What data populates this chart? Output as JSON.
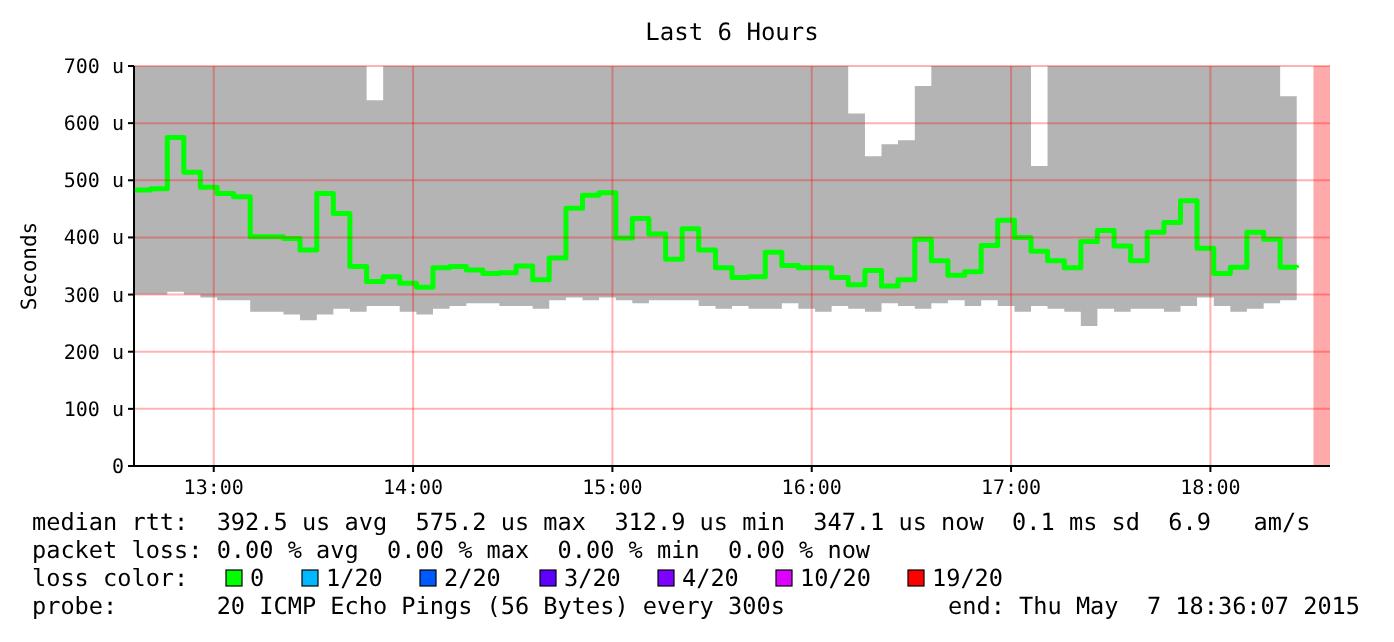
{
  "chart_data": {
    "type": "step",
    "title": "Last 6 Hours",
    "ylabel": "Seconds",
    "x": [
      12.6,
      12.683,
      12.767,
      12.85,
      12.933,
      13.017,
      13.1,
      13.183,
      13.267,
      13.35,
      13.433,
      13.517,
      13.6,
      13.683,
      13.767,
      13.85,
      13.933,
      14.017,
      14.1,
      14.183,
      14.267,
      14.35,
      14.433,
      14.517,
      14.6,
      14.683,
      14.767,
      14.85,
      14.933,
      15.017,
      15.1,
      15.183,
      15.267,
      15.35,
      15.433,
      15.517,
      15.6,
      15.683,
      15.767,
      15.85,
      15.933,
      16.017,
      16.1,
      16.183,
      16.267,
      16.35,
      16.433,
      16.517,
      16.6,
      16.683,
      16.767,
      16.85,
      16.933,
      17.017,
      17.1,
      17.183,
      17.267,
      17.35,
      17.433,
      17.517,
      17.6,
      17.683,
      17.767,
      17.85,
      17.933,
      18.017,
      18.1,
      18.183,
      18.267,
      18.35,
      18.433
    ],
    "series": [
      {
        "color": "#00ff00",
        "values": [
          483,
          485,
          575,
          514,
          488,
          477,
          471,
          401,
          401,
          398,
          378,
          477,
          442,
          349,
          323,
          331,
          320,
          313,
          347,
          349,
          343,
          337,
          338,
          350,
          326,
          364,
          451,
          474,
          478,
          399,
          433,
          406,
          362,
          415,
          378,
          347,
          330,
          331,
          374,
          351,
          347,
          347,
          330,
          317,
          342,
          315,
          326,
          397,
          359,
          334,
          340,
          386,
          430,
          400,
          376,
          359,
          347,
          393,
          412,
          385,
          359,
          409,
          426,
          464,
          381,
          337,
          348,
          409,
          397,
          348,
          347
        ],
        "lower": [
          300,
          300,
          305,
          300,
          295,
          290,
          290,
          270,
          270,
          265,
          255,
          265,
          275,
          270,
          280,
          280,
          270,
          265,
          275,
          280,
          285,
          285,
          280,
          280,
          275,
          290,
          295,
          290,
          295,
          290,
          285,
          290,
          290,
          290,
          280,
          275,
          280,
          275,
          275,
          285,
          275,
          270,
          280,
          275,
          270,
          285,
          280,
          275,
          285,
          290,
          280,
          290,
          280,
          270,
          280,
          275,
          270,
          245,
          275,
          270,
          275,
          275,
          270,
          280,
          295,
          280,
          270,
          275,
          285,
          290,
          280
        ],
        "upper": [
          700,
          700,
          700,
          700,
          700,
          700,
          700,
          700,
          700,
          700,
          700,
          700,
          700,
          700,
          640,
          700,
          700,
          700,
          700,
          700,
          700,
          700,
          700,
          700,
          700,
          700,
          700,
          700,
          700,
          700,
          700,
          700,
          700,
          700,
          700,
          700,
          700,
          700,
          700,
          700,
          700,
          700,
          700,
          617,
          542,
          563,
          570,
          665,
          700,
          700,
          700,
          700,
          700,
          700,
          525,
          700,
          700,
          700,
          700,
          700,
          700,
          700,
          700,
          700,
          700,
          700,
          700,
          700,
          700,
          647,
          700
        ]
      }
    ],
    "xlim": [
      12.6,
      18.6
    ],
    "xticks": [
      {
        "value": 13,
        "label": "13:00"
      },
      {
        "value": 14,
        "label": "14:00"
      },
      {
        "value": 15,
        "label": "15:00"
      },
      {
        "value": 16,
        "label": "16:00"
      },
      {
        "value": 17,
        "label": "17:00"
      },
      {
        "value": 18,
        "label": "18:00"
      }
    ],
    "ylim": [
      0,
      700
    ],
    "yticks": [
      0,
      {
        "value": 100,
        "label": "100 u"
      },
      {
        "value": 200,
        "label": "200 u"
      },
      {
        "value": 300,
        "label": "300 u"
      },
      {
        "value": 400,
        "label": "400 u"
      },
      {
        "value": 500,
        "label": "500 u"
      },
      {
        "value": 600,
        "label": "600 u"
      },
      {
        "value": 700,
        "label": "700 u"
      }
    ],
    "grid": true,
    "bands": [
      {
        "axis": "x",
        "from": 18.517,
        "to": 18.6,
        "color": "#ffaaaa"
      }
    ],
    "annotations": [
      "median rtt:  392.5 us avg  575.2 us max  312.9 us min  347.1 us now  0.1 ms sd  6.9   am/s",
      "packet loss: 0.00 % avg  0.00 % max  0.00 % min  0.00 % now",
      "loss color:",
      "0",
      "1/20",
      "2/20",
      "3/20",
      "4/20",
      "10/20",
      "19/20",
      "probe:       20 ICMP Echo Pings (56 Bytes) every 300s",
      "end: Thu May  7 18:36:07 2015"
    ]
  }
}
